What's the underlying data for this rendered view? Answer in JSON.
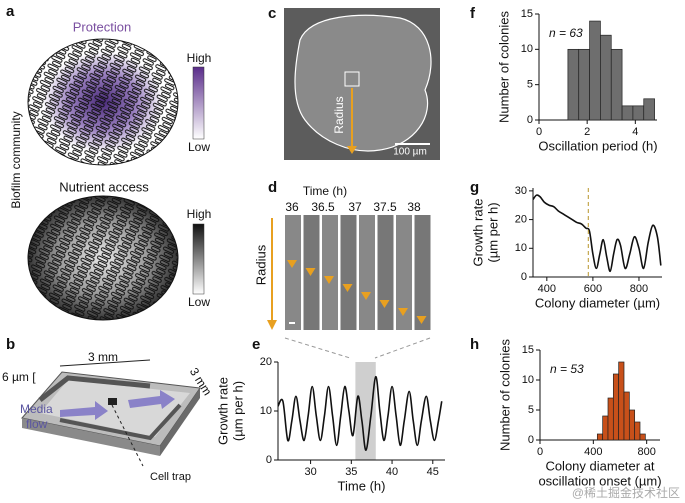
{
  "panel_labels": [
    "a",
    "b",
    "c",
    "d",
    "e",
    "f",
    "g",
    "h"
  ],
  "panel_a": {
    "side_label": "Biofilm community",
    "top_title": "Protection",
    "top_high": "High",
    "top_low": "Low",
    "bottom_title": "Nutrient access",
    "bottom_high": "High",
    "bottom_low": "Low"
  },
  "panel_b": {
    "width_label": "3 mm",
    "depth_label": "3 mm",
    "height_label": "6 µm [",
    "flow_label": [
      "Media",
      "flow"
    ],
    "trap_label": "Cell trap"
  },
  "panel_c": {
    "radius_label": "Radius",
    "scale_label": "100 µm"
  },
  "panel_d": {
    "time_label": "Time (h)",
    "times": [
      "36",
      "36.5",
      "37",
      "37.5",
      "38"
    ],
    "radius_label": "Radius"
  },
  "watermark": "@稀土掘金技术社区",
  "chart_data": [
    {
      "type": "histogram",
      "panel": "f",
      "annotation": "n = 63",
      "xlabel": "Oscillation period (h)",
      "ylabel": "Number of colonies",
      "color": "#6e6e6e",
      "bins": [
        1.2,
        1.65,
        2.1,
        2.55,
        3.0,
        3.45,
        3.9,
        4.35,
        4.8
      ],
      "values": [
        10,
        10,
        14,
        12,
        10,
        2,
        2,
        3
      ],
      "xlim": [
        0,
        4.9
      ],
      "xticks": [
        0,
        2,
        4
      ],
      "ylim": [
        0,
        15
      ],
      "yticks": [
        0,
        5,
        10,
        15
      ]
    },
    {
      "type": "line",
      "panel": "g",
      "xlabel": "Colony diameter (µm)",
      "ylabel": [
        "Growth rate",
        "(µm per h)"
      ],
      "color": "#111111",
      "marker_x": 580,
      "x": [
        340,
        355,
        370,
        390,
        410,
        430,
        450,
        470,
        490,
        510,
        530,
        550,
        570,
        585,
        600,
        615,
        630,
        645,
        660,
        675,
        690,
        705,
        720,
        740,
        760,
        780,
        800,
        820,
        840,
        860,
        880,
        895
      ],
      "values": [
        27,
        28.5,
        28,
        26,
        25,
        24.5,
        23,
        22,
        21,
        20,
        19,
        18.5,
        17,
        16,
        8,
        3,
        8,
        13,
        7,
        2,
        8,
        13,
        11,
        3,
        8,
        14,
        10,
        3,
        12,
        18,
        14,
        4
      ],
      "xlim": [
        340,
        900
      ],
      "xticks": [
        400,
        600,
        800
      ],
      "ylim": [
        0,
        31
      ],
      "yticks": [
        0,
        10,
        20,
        30
      ]
    },
    {
      "type": "line",
      "panel": "e",
      "xlabel": "Time (h)",
      "ylabel": [
        "Growth rate",
        "(µm per h)"
      ],
      "color": "#111111",
      "highlight": [
        35.5,
        38
      ],
      "x": [
        26,
        26.6,
        27.2,
        27.7,
        28.2,
        28.7,
        29.2,
        29.7,
        30.2,
        30.7,
        31.2,
        31.7,
        32.2,
        32.7,
        33.2,
        33.7,
        34.2,
        34.7,
        35.2,
        35.8,
        36.3,
        36.8,
        37.4,
        38,
        38.5,
        39,
        39.5,
        40,
        40.5,
        41,
        41.5,
        42.1,
        42.6,
        43.1,
        43.6,
        44.2,
        44.7,
        45.2,
        45.7,
        46.1
      ],
      "values": [
        11,
        12,
        4,
        8,
        13,
        8,
        4,
        9,
        15,
        9,
        4,
        9,
        15,
        9,
        3,
        9,
        15,
        10,
        5,
        13,
        8,
        2,
        9,
        17,
        10,
        4,
        9,
        15,
        9,
        3,
        8,
        14,
        8,
        3,
        8,
        13,
        8,
        4,
        8,
        12
      ],
      "xlim": [
        26,
        46.5
      ],
      "xticks": [
        30,
        35,
        40,
        45
      ],
      "ylim": [
        0,
        20
      ],
      "yticks": [
        0,
        10,
        20
      ]
    },
    {
      "type": "histogram",
      "panel": "h",
      "annotation": "n = 53",
      "xlabel": [
        "Colony diameter at",
        "oscillation onset (µm)"
      ],
      "ylabel": "Number of colonies",
      "color": "#c8501a",
      "bins": [
        430,
        470,
        510,
        550,
        590,
        630,
        670,
        710,
        750,
        790
      ],
      "values": [
        1,
        4,
        7,
        11,
        13,
        8,
        5,
        3,
        1
      ],
      "xlim": [
        0,
        900
      ],
      "xticks": [
        0,
        400,
        800
      ],
      "ylim": [
        0,
        15
      ],
      "yticks": [
        0,
        5,
        10,
        15
      ]
    }
  ]
}
